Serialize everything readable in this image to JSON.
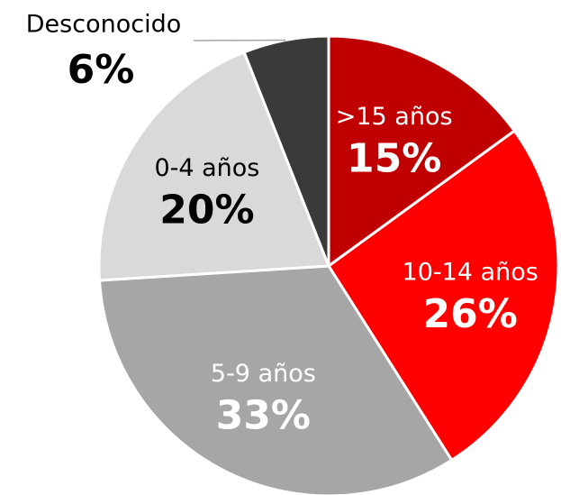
{
  "chart_data": {
    "type": "pie",
    "categories": [
      ">15 años",
      "10-14 años",
      "5-9 años",
      "0-4 años",
      "Desconocido"
    ],
    "values": [
      15,
      26,
      33,
      20,
      6
    ],
    "value_labels": [
      "15%",
      "26%",
      "33%",
      "20%",
      "6%"
    ],
    "colors": [
      "#c00000",
      "#ff0000",
      "#a6a6a6",
      "#d9d9d9",
      "#3b3a39"
    ],
    "label_colors": [
      "#ffffff",
      "#ffffff",
      "#ffffff",
      "#000000",
      "#000000"
    ]
  }
}
